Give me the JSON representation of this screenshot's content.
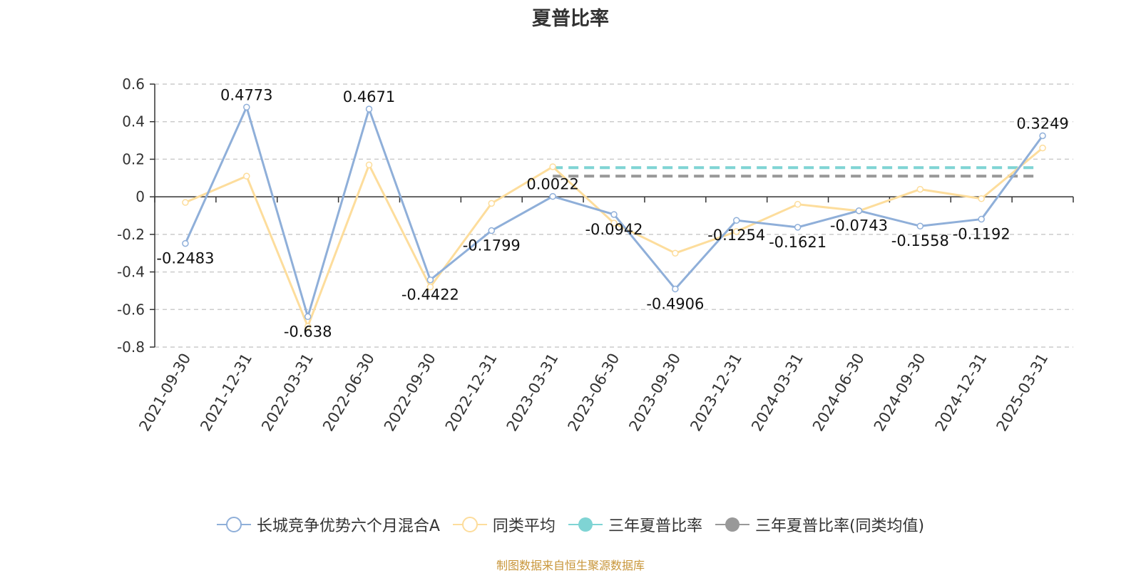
{
  "chart_data": {
    "type": "line",
    "title": "夏普比率",
    "categories": [
      "2021-09-30",
      "2021-12-31",
      "2022-03-31",
      "2022-06-30",
      "2022-09-30",
      "2022-12-31",
      "2023-03-31",
      "2023-06-30",
      "2023-09-30",
      "2023-12-31",
      "2024-03-31",
      "2024-06-30",
      "2024-09-30",
      "2024-12-31",
      "2025-03-31"
    ],
    "ylim": [
      -0.8,
      0.6
    ],
    "yticks": [
      "0.6",
      "0.4",
      "0.2",
      "0",
      "-0.2",
      "-0.4",
      "-0.6",
      "-0.8"
    ],
    "grid": true,
    "legend_position": "bottom",
    "series": [
      {
        "name": "长城竞争优势六个月混合A",
        "color": "#8fafd9",
        "values": [
          -0.2483,
          0.4773,
          -0.638,
          0.4671,
          -0.4422,
          -0.1799,
          0.0022,
          -0.0942,
          -0.4906,
          -0.1254,
          -0.1621,
          -0.0743,
          -0.1558,
          -0.1192,
          0.3249
        ],
        "labels": [
          "-0.2483",
          "0.4773",
          "-0.638",
          "0.4671",
          "-0.4422",
          "-0.1799",
          "0.0022",
          "-0.0942",
          "-0.4906",
          "-0.1254",
          "-0.1621",
          "-0.0743",
          "-0.1558",
          "-0.1192",
          "0.3249"
        ]
      },
      {
        "name": "同类平均",
        "color": "#fddd9c",
        "values": [
          -0.03,
          0.11,
          -0.69,
          0.17,
          -0.48,
          -0.035,
          0.16,
          -0.14,
          -0.3,
          -0.185,
          -0.04,
          -0.075,
          0.04,
          -0.01,
          0.26
        ]
      },
      {
        "name": "三年夏普比率",
        "color": "#7fd4d4",
        "style": "dashed",
        "start": "2023-03-31",
        "end": "2025-03-31",
        "value": 0.155
      },
      {
        "name": "三年夏普比率(同类均值)",
        "color": "#999999",
        "style": "dashed",
        "start": "2023-03-31",
        "end": "2025-03-31",
        "value": 0.11
      }
    ]
  },
  "legend": {
    "items": [
      {
        "label": "长城竞争优势六个月混合A",
        "color": "#8fafd9",
        "marker": "hollow"
      },
      {
        "label": "同类平均",
        "color": "#fddd9c",
        "marker": "hollow"
      },
      {
        "label": "三年夏普比率",
        "color": "#7fd4d4",
        "marker": "filled"
      },
      {
        "label": "三年夏普比率(同类均值)",
        "color": "#999999",
        "marker": "filled"
      }
    ]
  },
  "source": "制图数据来自恒生聚源数据库"
}
